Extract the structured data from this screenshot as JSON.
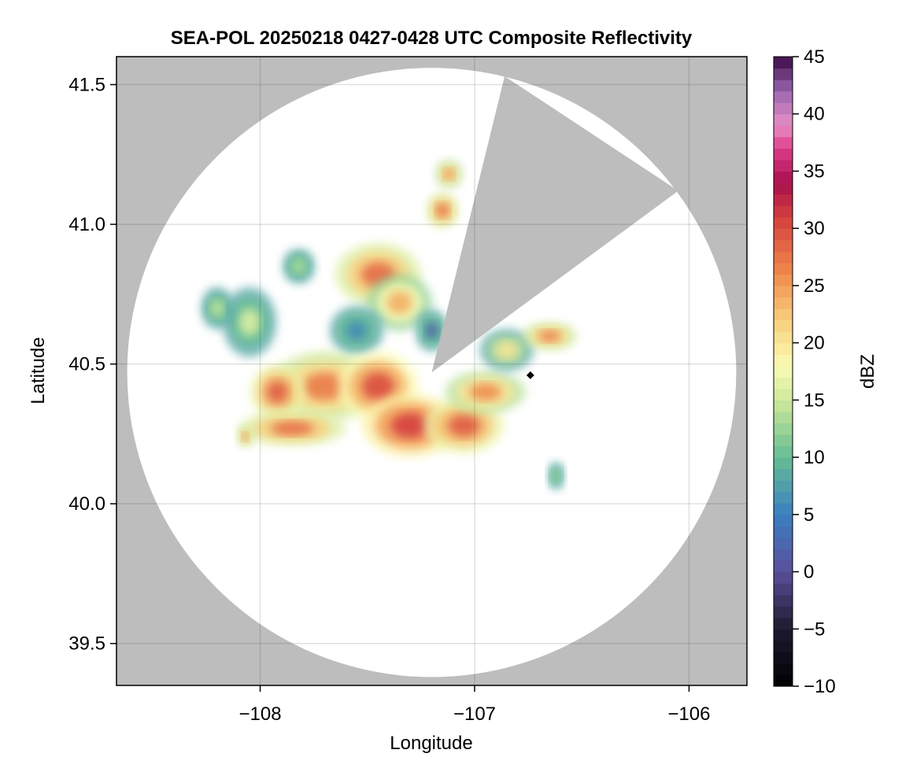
{
  "chart_data": {
    "type": "heatmap",
    "title": "SEA-POL 20250218 0427-0428 UTC Composite Reflectivity",
    "xlabel": "Longitude",
    "ylabel": "Latitude",
    "xlim": [
      -108.67,
      -105.73
    ],
    "ylim": [
      39.35,
      41.6
    ],
    "xticks": [
      -108,
      -107,
      -106
    ],
    "xtick_labels": [
      "−108",
      "−107",
      "−106"
    ],
    "yticks": [
      39.5,
      40.0,
      40.5,
      41.0,
      41.5
    ],
    "ytick_labels": [
      "39.5",
      "40.0",
      "40.5",
      "41.0",
      "41.5"
    ],
    "grid": true,
    "background_color": "#bdbdbd",
    "radar": {
      "center_lon": -107.2,
      "center_lat": 40.47,
      "max_range_deg_lon": 1.42,
      "max_range_deg_lat": 1.09,
      "blocked_sectors_lonlat": [
        [
          [
            -107.2,
            40.47
          ],
          [
            -106.86,
            41.53
          ],
          [
            -106.05,
            41.12
          ]
        ]
      ],
      "site_marker": {
        "lon": -106.74,
        "lat": 40.46,
        "color": "#000000"
      }
    },
    "reflectivity_cells": [
      {
        "lon": -107.45,
        "lat": 40.82,
        "rx": 0.16,
        "ry": 0.09,
        "dbz": 28
      },
      {
        "lon": -107.35,
        "lat": 40.72,
        "rx": 0.12,
        "ry": 0.08,
        "dbz": 24
      },
      {
        "lon": -107.55,
        "lat": 40.62,
        "rx": 0.1,
        "ry": 0.07,
        "dbz": 6
      },
      {
        "lon": -107.7,
        "lat": 40.42,
        "rx": 0.2,
        "ry": 0.1,
        "dbz": 27
      },
      {
        "lon": -107.92,
        "lat": 40.4,
        "rx": 0.1,
        "ry": 0.08,
        "dbz": 29
      },
      {
        "lon": -107.85,
        "lat": 40.27,
        "rx": 0.2,
        "ry": 0.05,
        "dbz": 28
      },
      {
        "lon": -107.45,
        "lat": 40.42,
        "rx": 0.15,
        "ry": 0.1,
        "dbz": 30
      },
      {
        "lon": -107.3,
        "lat": 40.28,
        "rx": 0.18,
        "ry": 0.09,
        "dbz": 31
      },
      {
        "lon": -107.05,
        "lat": 40.28,
        "rx": 0.15,
        "ry": 0.08,
        "dbz": 29
      },
      {
        "lon": -106.95,
        "lat": 40.4,
        "rx": 0.15,
        "ry": 0.06,
        "dbz": 26
      },
      {
        "lon": -106.85,
        "lat": 40.55,
        "rx": 0.1,
        "ry": 0.06,
        "dbz": 20
      },
      {
        "lon": -106.65,
        "lat": 40.6,
        "rx": 0.1,
        "ry": 0.04,
        "dbz": 27
      },
      {
        "lon": -107.15,
        "lat": 41.05,
        "rx": 0.06,
        "ry": 0.05,
        "dbz": 28
      },
      {
        "lon": -107.12,
        "lat": 41.18,
        "rx": 0.05,
        "ry": 0.04,
        "dbz": 26
      },
      {
        "lon": -108.05,
        "lat": 40.65,
        "rx": 0.1,
        "ry": 0.1,
        "dbz": 16
      },
      {
        "lon": -108.2,
        "lat": 40.7,
        "rx": 0.06,
        "ry": 0.06,
        "dbz": 15
      },
      {
        "lon": -107.82,
        "lat": 40.85,
        "rx": 0.06,
        "ry": 0.05,
        "dbz": 14
      },
      {
        "lon": -107.2,
        "lat": 40.62,
        "rx": 0.06,
        "ry": 0.06,
        "dbz": 2
      },
      {
        "lon": -106.62,
        "lat": 40.1,
        "rx": 0.03,
        "ry": 0.04,
        "dbz": 13
      },
      {
        "lon": -108.07,
        "lat": 40.24,
        "rx": 0.03,
        "ry": 0.03,
        "dbz": 27
      }
    ],
    "colorbar": {
      "label": "dBZ",
      "min": -10,
      "max": 45,
      "ticks": [
        -10,
        -5,
        0,
        5,
        10,
        15,
        20,
        25,
        30,
        35,
        40,
        45
      ],
      "tick_labels": [
        "−10",
        "−5",
        "0",
        "5",
        "10",
        "15",
        "20",
        "25",
        "30",
        "35",
        "40",
        "45"
      ],
      "color_stops": [
        {
          "value": -10,
          "color": "#000004"
        },
        {
          "value": -5,
          "color": "#1e1a2e"
        },
        {
          "value": 0,
          "color": "#5a4e9a"
        },
        {
          "value": 5,
          "color": "#3b7fc1"
        },
        {
          "value": 10,
          "color": "#66bd94"
        },
        {
          "value": 15,
          "color": "#cde89a"
        },
        {
          "value": 18,
          "color": "#fbfbb4"
        },
        {
          "value": 22,
          "color": "#f8cf7c"
        },
        {
          "value": 26,
          "color": "#f08a4b"
        },
        {
          "value": 31,
          "color": "#d43f3f"
        },
        {
          "value": 34,
          "color": "#a8104d"
        },
        {
          "value": 37,
          "color": "#de3c8a"
        },
        {
          "value": 39,
          "color": "#e88fc6"
        },
        {
          "value": 42,
          "color": "#9a66b0"
        },
        {
          "value": 45,
          "color": "#3b0a45"
        }
      ]
    }
  }
}
